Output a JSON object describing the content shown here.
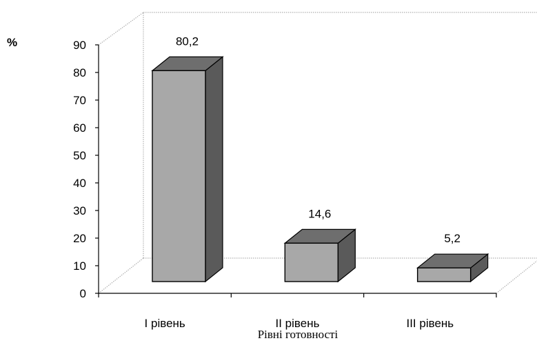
{
  "chart_data": {
    "type": "bar",
    "categories": [
      "І рівень",
      "ІІ рівень",
      "ІІІ рівень"
    ],
    "values": [
      80.2,
      14.6,
      5.2
    ],
    "data_labels": [
      "80,2",
      "14,6",
      "5,2"
    ],
    "title": "",
    "xlabel": "Рівні готовності",
    "ylabel": "%",
    "ylim": [
      0,
      90
    ],
    "yticks": [
      0,
      10,
      20,
      30,
      40,
      50,
      60,
      70,
      80,
      90
    ],
    "grid": false,
    "legend": "none",
    "style": "3d",
    "colors": {
      "bar_front": "#a8a8a8",
      "bar_top": "#6e6e6e",
      "bar_side": "#5a5a5a",
      "bar_edge": "#000000",
      "frame": "#b0b0b0"
    }
  }
}
